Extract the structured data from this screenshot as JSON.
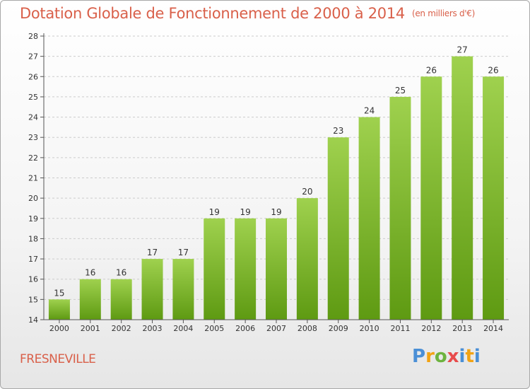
{
  "title": "Dotation Globale de Fonctionnement de 2000 à 2014",
  "subtitle": "(en milliers d'€)",
  "town": "FRESNEVILLE",
  "logo": {
    "letters": [
      "P",
      "r",
      "o",
      "x",
      "i",
      "t",
      "i"
    ]
  },
  "colors": {
    "title": "#d9604a",
    "bar_top": "#9fd14e",
    "bar_bottom": "#5e9a12",
    "axis": "#555555",
    "grid": "#cccccc"
  },
  "chart_data": {
    "type": "bar",
    "title": "Dotation Globale de Fonctionnement de 2000 à 2014",
    "subtitle": "(en milliers d'€)",
    "categories": [
      "2000",
      "2001",
      "2002",
      "2003",
      "2004",
      "2005",
      "2006",
      "2007",
      "2008",
      "2009",
      "2010",
      "2011",
      "2012",
      "2013",
      "2014"
    ],
    "values": [
      15,
      16,
      16,
      17,
      17,
      19,
      19,
      19,
      20,
      23,
      24,
      25,
      26,
      27,
      26
    ],
    "data_labels": [
      "15",
      "16",
      "16",
      "17",
      "17",
      "19",
      "19",
      "19",
      "20",
      "23",
      "24",
      "25",
      "26",
      "27",
      "26"
    ],
    "ylim": [
      14,
      28
    ],
    "yticks": [
      "14",
      "15",
      "16",
      "17",
      "18",
      "19",
      "20",
      "21",
      "22",
      "23",
      "24",
      "25",
      "26",
      "27",
      "28"
    ],
    "grid": true,
    "legend": "none"
  }
}
